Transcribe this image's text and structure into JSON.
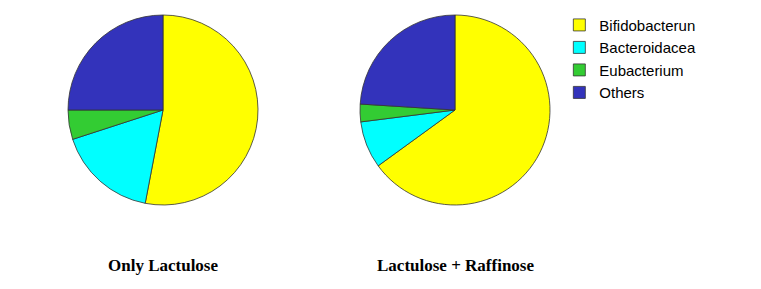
{
  "chart_data": [
    {
      "type": "pie",
      "title": "Only Lactulose",
      "categories": [
        "Bifidobacterun",
        "Bacteroidacea",
        "Eubacterium",
        "Others"
      ],
      "values": [
        53,
        17,
        5,
        25
      ],
      "colors": [
        "#ffff00",
        "#00ffff",
        "#33cc33",
        "#3333bb"
      ],
      "legend": "right"
    },
    {
      "type": "pie",
      "title": "Lactulose + Raffinose",
      "categories": [
        "Bifidobacterun",
        "Bacteroidacea",
        "Eubacterium",
        "Others"
      ],
      "values": [
        65,
        8,
        3,
        24
      ],
      "colors": [
        "#ffff00",
        "#00ffff",
        "#33cc33",
        "#3333bb"
      ],
      "legend": "right"
    }
  ]
}
